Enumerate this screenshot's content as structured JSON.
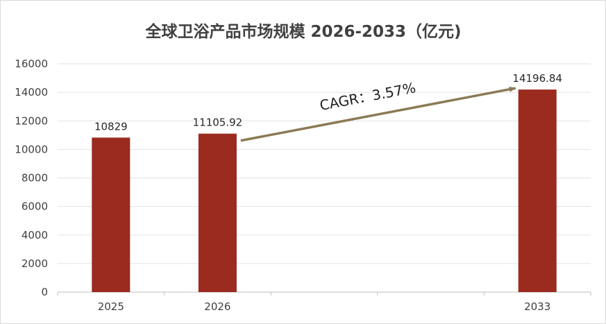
{
  "chart_data": {
    "type": "bar",
    "title": "全球卫浴产品市场规模 2026-2033（亿元)",
    "categories": [
      "2025",
      "2026",
      "",
      "",
      "2033"
    ],
    "values": [
      10829,
      11105.92,
      null,
      null,
      14196.84
    ],
    "value_labels": [
      "10829",
      "11105.92",
      "",
      "",
      "14196.84"
    ],
    "ylim": [
      0,
      16000
    ],
    "yticks": [
      "0",
      "2000",
      "4000",
      "6000",
      "8000",
      "10000",
      "12000",
      "14000",
      "16000"
    ],
    "grid": true,
    "bar_color": "#9b2a1f",
    "annotation": {
      "text": "CAGR：3.57%",
      "from_category": "2026",
      "to_category": "2033",
      "arrow_color": "#8b7a55"
    }
  }
}
